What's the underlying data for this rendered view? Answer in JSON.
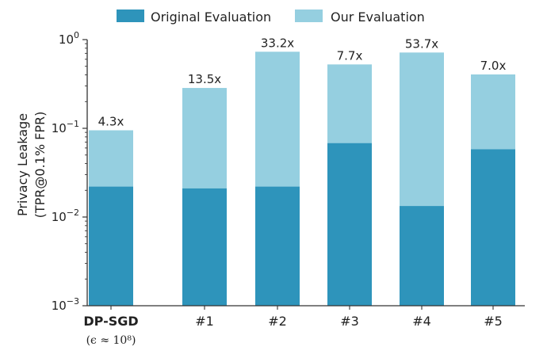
{
  "chart_data": {
    "type": "bar",
    "subtype": "overlaid",
    "title": "",
    "xlabel": "",
    "ylabel_lines": [
      "Privacy Leakage",
      "(TPR@0.1% FPR)"
    ],
    "y_scale": "log",
    "ylim": [
      0.001,
      1
    ],
    "y_ticks": [
      {
        "value": 0.001,
        "base": "10",
        "exp": "−3"
      },
      {
        "value": 0.01,
        "base": "10",
        "exp": "−2"
      },
      {
        "value": 0.1,
        "base": "10",
        "exp": "−1"
      },
      {
        "value": 1,
        "base": "10",
        "exp": "0"
      }
    ],
    "categories": [
      "DP-SGD",
      "#1",
      "#2",
      "#3",
      "#4",
      "#5"
    ],
    "category_sublabels": [
      "(ϵ ≈ 10⁸)",
      "",
      "",
      "",
      "",
      ""
    ],
    "bold_categories": [
      "DP-SGD"
    ],
    "series": [
      {
        "name": "Original Evaluation",
        "color": "#2e94bb",
        "values": [
          0.022,
          0.021,
          0.022,
          0.068,
          0.0133,
          0.058
        ]
      },
      {
        "name": "Our Evaluation",
        "color": "#95cfe0",
        "values": [
          0.095,
          0.285,
          0.73,
          0.525,
          0.715,
          0.405
        ]
      }
    ],
    "bar_labels": [
      "4.3x",
      "13.5x",
      "33.2x",
      "7.7x",
      "53.7x",
      "7.0x"
    ],
    "legend_position": "top-center",
    "grid": false
  }
}
